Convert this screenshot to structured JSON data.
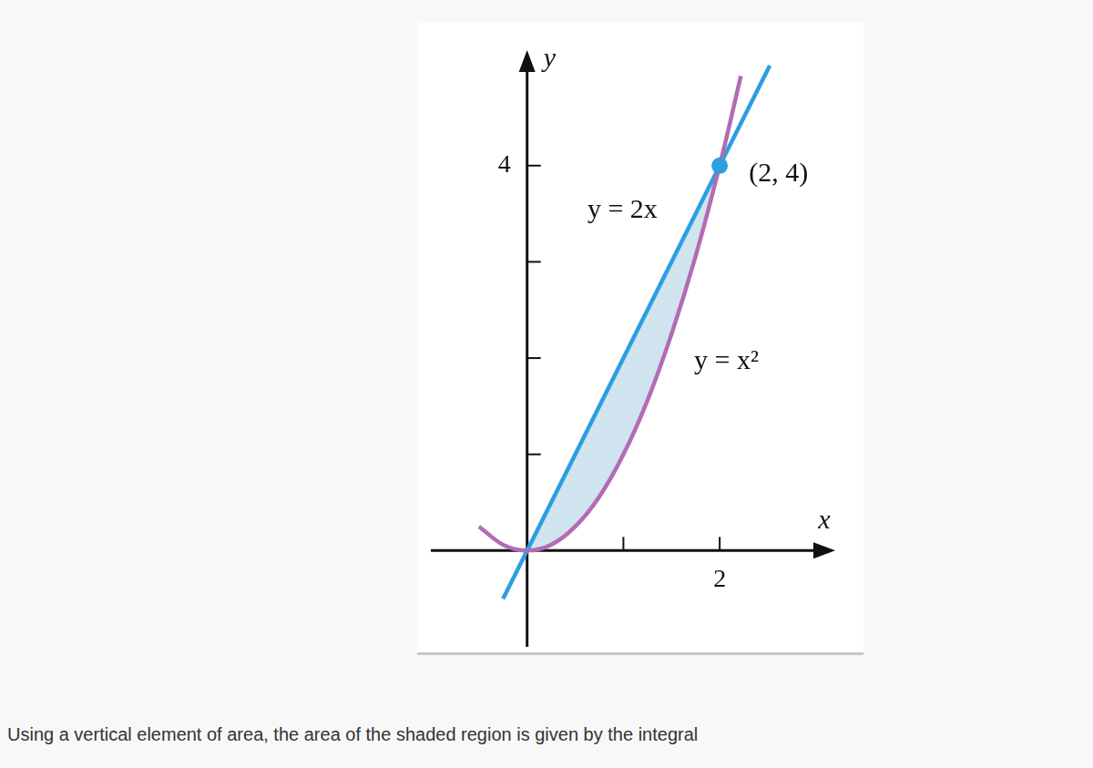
{
  "caption": "Using a vertical element of area, the area of the shaded region is given by the integral",
  "chart_data": {
    "type": "line",
    "x_label": "x",
    "y_label": "y",
    "xlim": [
      -1,
      3.2
    ],
    "ylim": [
      -1,
      5.2
    ],
    "xticks": [
      {
        "value": 1,
        "label": null
      },
      2
    ],
    "yticks": [
      {
        "value": 1,
        "label": null
      },
      {
        "value": 2,
        "label": null
      },
      {
        "value": 3,
        "label": null
      },
      4
    ],
    "grid": false,
    "series": [
      {
        "type": "area",
        "color": "#cfe4ef",
        "x": [
          0,
          0.25,
          0.5,
          0.75,
          1,
          1.25,
          1.5,
          1.75,
          2
        ],
        "values": [
          0,
          0.5,
          1,
          1.5,
          2,
          2.5,
          3,
          3.5,
          4
        ],
        "lower": [
          0,
          0.06,
          0.25,
          0.56,
          1,
          1.56,
          2.25,
          3.06,
          4
        ]
      },
      {
        "type": "line",
        "color": "#b36bb3",
        "x": [
          -0.5,
          -0.25,
          0,
          0.25,
          0.5,
          0.75,
          1,
          1.25,
          1.5,
          1.75,
          2,
          2.22
        ],
        "values": [
          0.25,
          0.06,
          0,
          0.06,
          0.25,
          0.56,
          1,
          1.56,
          2.25,
          3.06,
          4,
          4.93
        ]
      },
      {
        "type": "line",
        "color": "#2b9fe0",
        "x": [
          -0.25,
          2.52
        ],
        "values": [
          -0.5,
          5.04
        ]
      },
      {
        "type": "scatter",
        "color": "#2b9fe0",
        "marker": "circle",
        "x": [
          2
        ],
        "values": [
          4
        ]
      }
    ],
    "annotations": [
      {
        "text": "y = 2x",
        "x": 0.99,
        "y": 3.53
      },
      {
        "text": "y = x²",
        "x": 2.07,
        "y": 1.96
      },
      {
        "text": "(2, 4)",
        "x": 2.61,
        "y": 3.91
      }
    ]
  }
}
